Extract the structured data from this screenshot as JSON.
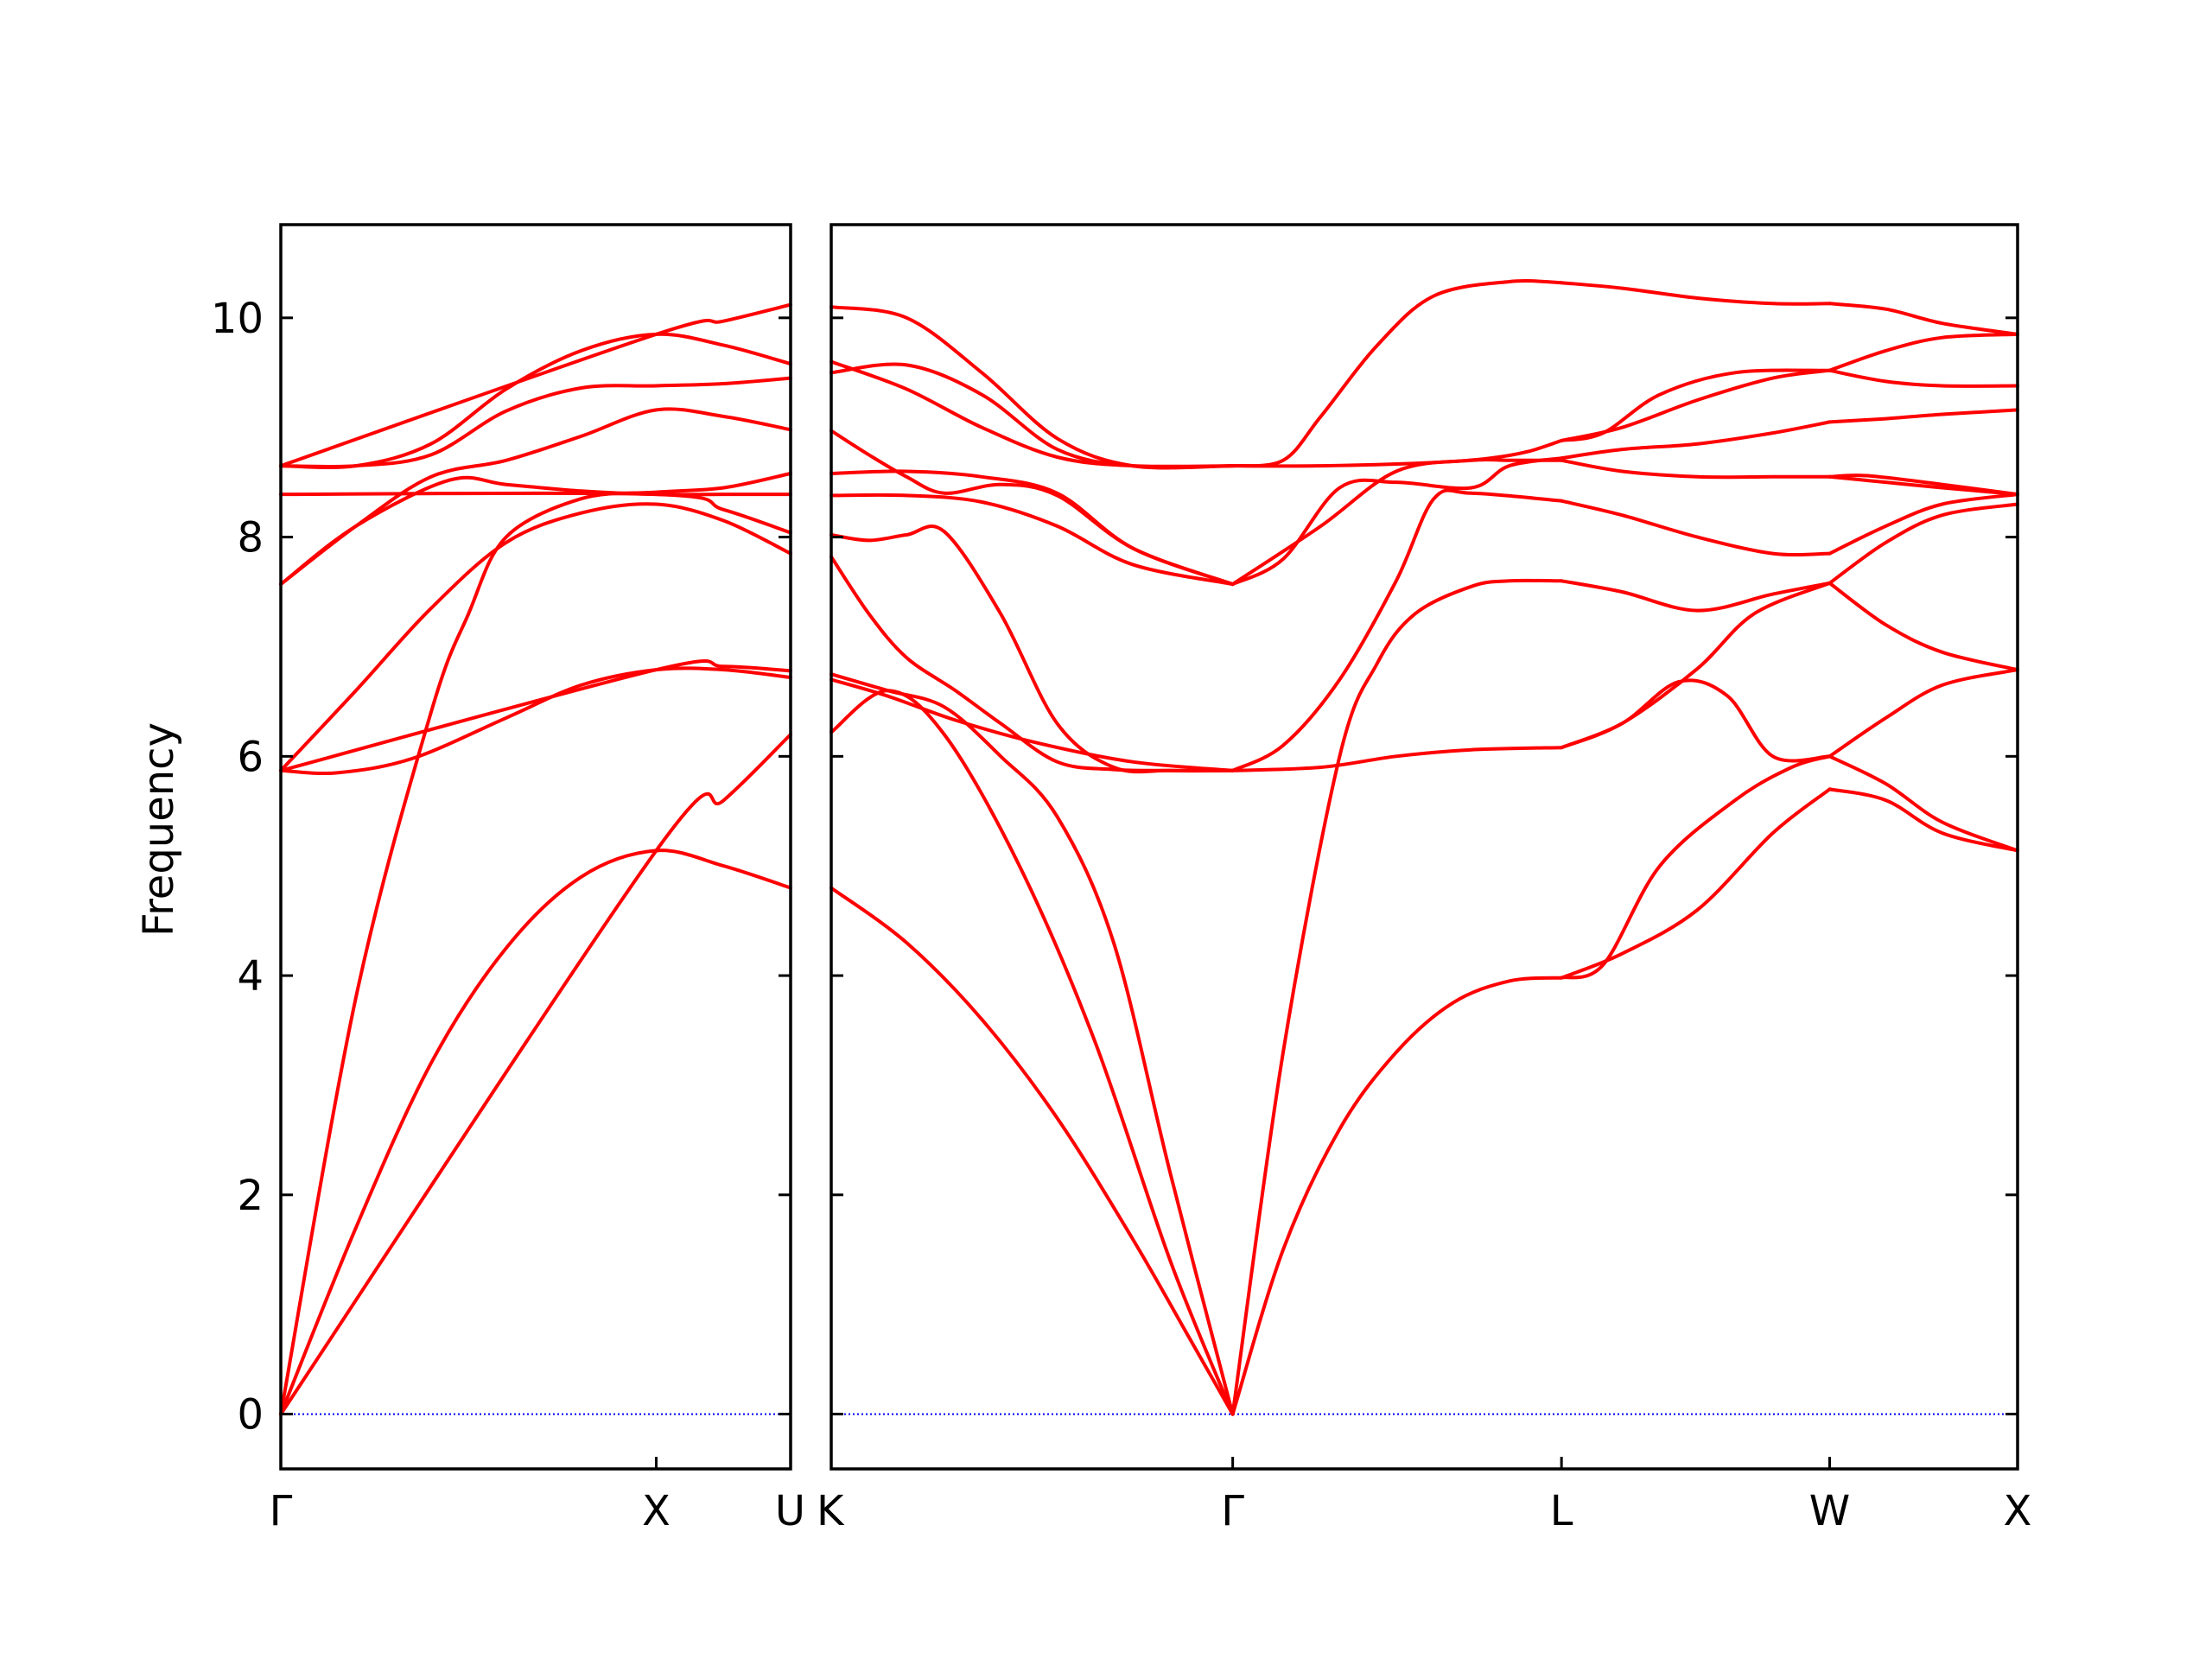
{
  "chart_data": {
    "type": "line",
    "ylabel": "Frequency",
    "ylim": [
      -0.5,
      10.85
    ],
    "yticks": [
      0,
      2,
      4,
      6,
      8,
      10
    ],
    "grid": false,
    "colors": {
      "band": "#ff0000",
      "zero_line": "#0000ff",
      "axes": "#000000"
    },
    "panels": [
      {
        "xlim": [
          0,
          1.358
        ],
        "points": [
          {
            "label": "Γ",
            "x": 0
          },
          {
            "label": "X",
            "x": 1.0
          },
          {
            "label": "U",
            "x": 1.358
          }
        ],
        "bands": [
          {
            "x": [
              0,
              0.2,
              0.4,
              0.6,
              0.8,
              1.0,
              1.18,
              1.358
            ],
            "y": [
              0,
              1.7,
              3.2,
              4.25,
              4.9,
              5.14,
              5.0,
              4.8
            ]
          },
          {
            "x": [
              0,
              0.2,
              0.4,
              0.5,
              0.6,
              0.8,
              1.0,
              1.18,
              1.358
            ],
            "y": [
              0,
              3.8,
              6.4,
              7.3,
              8.0,
              8.35,
              8.41,
              8.45,
              8.58
            ]
          },
          {
            "x": [
              0,
              0.15,
              0.35,
              0.6,
              0.8,
              1.0,
              1.18,
              1.358
            ],
            "y": [
              5.87,
              5.85,
              5.98,
              6.35,
              6.65,
              6.79,
              6.79,
              6.72
            ]
          },
          {
            "x": [
              0,
              0.2,
              0.4,
              0.6,
              0.8,
              1.0,
              1.18,
              1.358
            ],
            "y": [
              5.87,
              6.6,
              7.35,
              7.95,
              8.22,
              8.3,
              8.15,
              7.85
            ]
          },
          {
            "x": [
              0,
              0.2,
              0.45,
              0.6,
              0.8,
              1.0,
              1.18,
              1.358
            ],
            "y": [
              7.57,
              8.1,
              8.52,
              8.48,
              8.42,
              8.39,
              8.39,
              8.39
            ]
          },
          {
            "x": [
              0,
              0.2,
              0.4,
              0.6,
              0.8,
              1.0,
              1.18,
              1.358
            ],
            "y": [
              7.57,
              8.1,
              8.55,
              8.7,
              8.92,
              9.16,
              9.1,
              8.98
            ]
          },
          {
            "x": [
              0,
              0.2,
              0.4,
              0.6,
              0.8,
              1.0,
              1.18,
              1.358
            ],
            "y": [
              8.65,
              8.65,
              8.75,
              9.15,
              9.36,
              9.38,
              9.4,
              9.45
            ]
          },
          {
            "x": [
              0,
              0.2,
              0.4,
              0.6,
              0.8,
              1.0,
              1.18,
              1.358
            ],
            "y": [
              8.65,
              8.65,
              8.85,
              9.35,
              9.7,
              9.85,
              9.75,
              9.58
            ]
          },
          {
            "x": [
              0,
              1.0,
              1.18,
              1.358
            ],
            "y": [
              8.65,
              9.85,
              9.97,
              10.12
            ]
          },
          {
            "x": [
              0,
              1.0,
              1.18,
              1.358
            ],
            "y": [
              8.39,
              8.39,
              8.25,
              8.04
            ]
          },
          {
            "x": [
              0,
              1.0,
              1.18,
              1.358
            ],
            "y": [
              5.87,
              6.79,
              6.82,
              6.78
            ]
          },
          {
            "x": [
              0,
              1.0,
              1.18,
              1.358
            ],
            "y": [
              0,
              5.14,
              5.6,
              6.2
            ]
          }
        ]
      },
      {
        "xlim": [
          0,
          3.15
        ],
        "points": [
          {
            "label": "K",
            "x": 0
          },
          {
            "label": "Γ",
            "x": 1.066
          },
          {
            "label": "L",
            "x": 1.939
          },
          {
            "label": "W",
            "x": 2.651
          },
          {
            "label": "X",
            "x": 3.15
          }
        ],
        "bands": [
          {
            "x": [
              0,
              0.2,
              0.4,
              0.6,
              0.8,
              0.95,
              1.066
            ],
            "y": [
              4.8,
              4.3,
              3.6,
              2.7,
              1.6,
              0.7,
              0
            ]
          },
          {
            "x": [
              0,
              0.15,
              0.3,
              0.5,
              0.7,
              0.9,
              1.066
            ],
            "y": [
              6.22,
              6.6,
              6.2,
              5.0,
              3.4,
              1.4,
              0
            ]
          },
          {
            "x": [
              0,
              0.15,
              0.3,
              0.45,
              0.6,
              0.75,
              0.9,
              1.066
            ],
            "y": [
              6.75,
              6.6,
              6.45,
              6.0,
              5.45,
              4.3,
              2.2,
              0
            ]
          },
          {
            "x": [
              0,
              0.15,
              0.33,
              0.55,
              0.8,
              1.066
            ],
            "y": [
              6.7,
              6.55,
              6.33,
              6.12,
              5.95,
              5.87
            ]
          },
          {
            "x": [
              0,
              0.1,
              0.2,
              0.33,
              0.45,
              0.6,
              0.75,
              0.9,
              1.066
            ],
            "y": [
              7.82,
              7.3,
              6.9,
              6.6,
              6.3,
              5.95,
              5.88,
              5.87,
              5.87
            ]
          },
          {
            "x": [
              0,
              0.1,
              0.2,
              0.3,
              0.45,
              0.6,
              0.75,
              0.9,
              1.066
            ],
            "y": [
              8.02,
              7.97,
              8.02,
              8.05,
              7.3,
              6.3,
              5.9,
              5.87,
              5.87
            ]
          },
          {
            "x": [
              0,
              0.2,
              0.4,
              0.6,
              0.8,
              1.066
            ],
            "y": [
              8.38,
              8.38,
              8.32,
              8.1,
              7.75,
              7.57
            ]
          },
          {
            "x": [
              0,
              0.2,
              0.4,
              0.6,
              0.8,
              1.066
            ],
            "y": [
              8.58,
              8.6,
              8.55,
              8.4,
              7.9,
              7.57
            ]
          },
          {
            "x": [
              0,
              0.1,
              0.2,
              0.3,
              0.45,
              0.6,
              0.8,
              1.066
            ],
            "y": [
              8.97,
              8.75,
              8.55,
              8.4,
              8.48,
              8.38,
              7.9,
              7.57
            ]
          },
          {
            "x": [
              0,
              0.2,
              0.4,
              0.6,
              0.8,
              1.066
            ],
            "y": [
              9.6,
              9.35,
              9.0,
              8.73,
              8.65,
              8.65
            ]
          },
          {
            "x": [
              0,
              0.2,
              0.4,
              0.6,
              0.8,
              1.066
            ],
            "y": [
              9.5,
              9.57,
              9.3,
              8.8,
              8.65,
              8.65
            ]
          },
          {
            "x": [
              0,
              0.2,
              0.4,
              0.6,
              0.8,
              1.066
            ],
            "y": [
              10.1,
              10.0,
              9.5,
              8.9,
              8.65,
              8.65
            ]
          },
          {
            "x": [
              1.066,
              1.2,
              1.35,
              1.5,
              1.65,
              1.8,
              1.939
            ],
            "y": [
              0,
              1.5,
              2.6,
              3.3,
              3.75,
              3.95,
              3.98
            ]
          },
          {
            "x": [
              1.066,
              1.2,
              1.35,
              1.45,
              1.55,
              1.7,
              1.8,
              1.939
            ],
            "y": [
              0,
              3.3,
              6.0,
              6.85,
              7.3,
              7.55,
              7.6,
              7.6
            ]
          },
          {
            "x": [
              1.066,
              1.3,
              1.5,
              1.7,
              1.939
            ],
            "y": [
              5.87,
              5.9,
              6.0,
              6.06,
              6.08
            ]
          },
          {
            "x": [
              1.066,
              1.2,
              1.35,
              1.5,
              1.6,
              1.7,
              1.939
            ],
            "y": [
              5.87,
              6.1,
              6.7,
              7.6,
              8.35,
              8.4,
              8.33
            ]
          },
          {
            "x": [
              1.066,
              1.3,
              1.5,
              1.7,
              1.8,
              1.939
            ],
            "y": [
              7.57,
              8.1,
              8.6,
              8.7,
              8.7,
              8.7
            ]
          },
          {
            "x": [
              1.066,
              1.2,
              1.35,
              1.5,
              1.7,
              1.8,
              1.939
            ],
            "y": [
              7.57,
              7.8,
              8.45,
              8.5,
              8.45,
              8.65,
              8.72
            ]
          },
          {
            "x": [
              1.066,
              1.3,
              1.6,
              1.75,
              1.85,
              1.939
            ],
            "y": [
              8.65,
              8.65,
              8.68,
              8.72,
              8.78,
              8.88
            ]
          },
          {
            "x": [
              1.066,
              1.2,
              1.3,
              1.45,
              1.6,
              1.8,
              1.939
            ],
            "y": [
              8.65,
              8.7,
              9.1,
              9.75,
              10.2,
              10.33,
              10.32
            ]
          },
          {
            "x": [
              1.939,
              2.05,
              2.2,
              2.4,
              2.55,
              2.651
            ],
            "y": [
              3.98,
              4.1,
              5.0,
              5.6,
              5.9,
              6.0
            ]
          },
          {
            "x": [
              1.939,
              2.1,
              2.3,
              2.5,
              2.651
            ],
            "y": [
              3.98,
              4.2,
              4.6,
              5.3,
              5.7
            ]
          },
          {
            "x": [
              1.939,
              2.1,
              2.25,
              2.38,
              2.5,
              2.651
            ],
            "y": [
              6.08,
              6.3,
              6.68,
              6.55,
              6.0,
              6.0
            ]
          },
          {
            "x": [
              1.939,
              2.1,
              2.3,
              2.45,
              2.651
            ],
            "y": [
              6.08,
              6.3,
              6.8,
              7.3,
              7.58
            ]
          },
          {
            "x": [
              1.939,
              2.1,
              2.3,
              2.5,
              2.651
            ],
            "y": [
              7.6,
              7.5,
              7.33,
              7.48,
              7.58
            ]
          },
          {
            "x": [
              1.939,
              2.1,
              2.3,
              2.5,
              2.651
            ],
            "y": [
              8.33,
              8.2,
              8.0,
              7.85,
              7.85
            ]
          },
          {
            "x": [
              1.939,
              2.1,
              2.3,
              2.5,
              2.651
            ],
            "y": [
              8.7,
              8.6,
              8.55,
              8.55,
              8.55
            ]
          },
          {
            "x": [
              1.939,
              2.1,
              2.3,
              2.5,
              2.651
            ],
            "y": [
              8.72,
              8.8,
              8.85,
              8.95,
              9.05
            ]
          },
          {
            "x": [
              1.939,
              2.1,
              2.3,
              2.5,
              2.651
            ],
            "y": [
              8.88,
              9.0,
              9.25,
              9.45,
              9.52
            ]
          },
          {
            "x": [
              1.939,
              2.05,
              2.2,
              2.4,
              2.651
            ],
            "y": [
              8.88,
              8.95,
              9.3,
              9.5,
              9.52
            ]
          },
          {
            "x": [
              1.939,
              2.1,
              2.3,
              2.5,
              2.651
            ],
            "y": [
              10.32,
              10.27,
              10.18,
              10.13,
              10.13
            ]
          },
          {
            "x": [
              2.651,
              2.8,
              2.95,
              3.15
            ],
            "y": [
              5.7,
              5.6,
              5.3,
              5.14
            ]
          },
          {
            "x": [
              2.651,
              2.8,
              2.95,
              3.15
            ],
            "y": [
              6.0,
              5.75,
              5.4,
              5.14
            ]
          },
          {
            "x": [
              2.651,
              2.8,
              2.95,
              3.15
            ],
            "y": [
              6.0,
              6.35,
              6.65,
              6.79
            ]
          },
          {
            "x": [
              2.651,
              2.8,
              2.95,
              3.15
            ],
            "y": [
              7.58,
              7.2,
              6.95,
              6.79
            ]
          },
          {
            "x": [
              2.651,
              2.8,
              2.95,
              3.15
            ],
            "y": [
              7.58,
              7.95,
              8.2,
              8.3
            ]
          },
          {
            "x": [
              2.651,
              2.8,
              2.95,
              3.15
            ],
            "y": [
              7.85,
              8.1,
              8.3,
              8.39
            ]
          },
          {
            "x": [
              2.651,
              2.8,
              2.95,
              3.15
            ],
            "y": [
              8.55,
              8.5,
              8.45,
              8.39
            ]
          },
          {
            "x": [
              2.651,
              2.75,
              2.95,
              3.15
            ],
            "y": [
              8.55,
              8.56,
              8.48,
              8.39
            ]
          },
          {
            "x": [
              2.651,
              2.8,
              2.95,
              3.15
            ],
            "y": [
              9.05,
              9.08,
              9.12,
              9.16
            ]
          },
          {
            "x": [
              2.651,
              2.8,
              2.95,
              3.15
            ],
            "y": [
              9.52,
              9.42,
              9.38,
              9.38
            ]
          },
          {
            "x": [
              2.651,
              2.8,
              2.95,
              3.15
            ],
            "y": [
              9.52,
              9.7,
              9.82,
              9.85
            ]
          },
          {
            "x": [
              2.651,
              2.8,
              2.95,
              3.15
            ],
            "y": [
              10.13,
              10.08,
              9.95,
              9.85
            ]
          }
        ]
      }
    ]
  }
}
